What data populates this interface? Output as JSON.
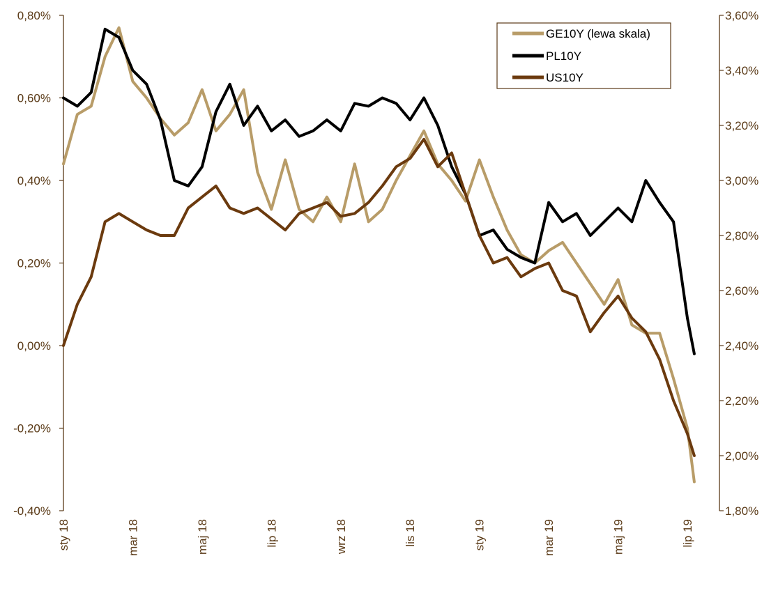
{
  "chart_data": {
    "type": "line",
    "title": "",
    "xlabel": "",
    "ylabel_left": "",
    "ylabel_right": "",
    "x_ticks": [
      "sty 18",
      "mar 18",
      "maj 18",
      "lip 18",
      "wrz 18",
      "lis 18",
      "sty 19",
      "mar 19",
      "maj 19",
      "lip 19"
    ],
    "y_left_ticks": [
      "0,80%",
      "0,60%",
      "0,40%",
      "0,20%",
      "0,00%",
      "-0,20%",
      "-0,40%"
    ],
    "y_right_ticks": [
      "3,60%",
      "3,40%",
      "3,20%",
      "3,00%",
      "2,80%",
      "2,60%",
      "2,40%",
      "2,20%",
      "2,00%",
      "1,80%"
    ],
    "y_left_range": [
      -0.4,
      0.8
    ],
    "y_right_range": [
      1.8,
      3.6
    ],
    "legend_position": "top-right",
    "series": [
      {
        "name": "GE10Y (lewa skala)",
        "axis": "left",
        "color": "#b89c68",
        "x": [
          0,
          0.2,
          0.4,
          0.6,
          0.8,
          1,
          1.2,
          1.4,
          1.6,
          1.8,
          2,
          2.2,
          2.4,
          2.6,
          2.8,
          3,
          3.2,
          3.4,
          3.6,
          3.8,
          4,
          4.2,
          4.4,
          4.6,
          4.8,
          5,
          5.2,
          5.4,
          5.6,
          5.8,
          6,
          6.2,
          6.4,
          6.6,
          6.8,
          7,
          7.2,
          7.4,
          7.6,
          7.8,
          8,
          8.2,
          8.4,
          8.6,
          8.8,
          9,
          9.1
        ],
        "values": [
          0.44,
          0.56,
          0.58,
          0.7,
          0.77,
          0.64,
          0.6,
          0.55,
          0.51,
          0.54,
          0.62,
          0.52,
          0.56,
          0.62,
          0.42,
          0.33,
          0.45,
          0.33,
          0.3,
          0.36,
          0.3,
          0.44,
          0.3,
          0.33,
          0.4,
          0.46,
          0.52,
          0.44,
          0.4,
          0.35,
          0.45,
          0.36,
          0.28,
          0.22,
          0.2,
          0.23,
          0.25,
          0.2,
          0.15,
          0.1,
          0.16,
          0.05,
          0.03,
          0.03,
          -0.08,
          -0.2,
          -0.33
        ]
      },
      {
        "name": "PL10Y",
        "axis": "right",
        "color": "#000000",
        "x": [
          0,
          0.2,
          0.4,
          0.6,
          0.8,
          1,
          1.2,
          1.4,
          1.6,
          1.8,
          2,
          2.2,
          2.4,
          2.6,
          2.8,
          3,
          3.2,
          3.4,
          3.6,
          3.8,
          4,
          4.2,
          4.4,
          4.6,
          4.8,
          5,
          5.2,
          5.4,
          5.6,
          5.8,
          6,
          6.2,
          6.4,
          6.6,
          6.8,
          7,
          7.2,
          7.4,
          7.6,
          7.8,
          8,
          8.2,
          8.4,
          8.6,
          8.8,
          9,
          9.1
        ],
        "values": [
          3.3,
          3.27,
          3.32,
          3.55,
          3.52,
          3.4,
          3.35,
          3.22,
          3.0,
          2.98,
          3.05,
          3.25,
          3.35,
          3.2,
          3.27,
          3.18,
          3.22,
          3.16,
          3.18,
          3.22,
          3.18,
          3.28,
          3.27,
          3.3,
          3.28,
          3.22,
          3.3,
          3.2,
          3.05,
          2.95,
          2.8,
          2.82,
          2.75,
          2.72,
          2.7,
          2.92,
          2.85,
          2.88,
          2.8,
          2.85,
          2.9,
          2.85,
          3.0,
          2.92,
          2.85,
          2.5,
          2.37
        ]
      },
      {
        "name": "US10Y",
        "axis": "right",
        "color": "#6b3a0e",
        "x": [
          0,
          0.2,
          0.4,
          0.6,
          0.8,
          1,
          1.2,
          1.4,
          1.6,
          1.8,
          2,
          2.2,
          2.4,
          2.6,
          2.8,
          3,
          3.2,
          3.4,
          3.6,
          3.8,
          4,
          4.2,
          4.4,
          4.6,
          4.8,
          5,
          5.2,
          5.4,
          5.6,
          5.8,
          6,
          6.2,
          6.4,
          6.6,
          6.8,
          7,
          7.2,
          7.4,
          7.6,
          7.8,
          8,
          8.2,
          8.4,
          8.6,
          8.8,
          9,
          9.1
        ],
        "values": [
          2.4,
          2.55,
          2.65,
          2.85,
          2.88,
          2.85,
          2.82,
          2.8,
          2.8,
          2.9,
          2.94,
          2.98,
          2.9,
          2.88,
          2.9,
          2.86,
          2.82,
          2.88,
          2.9,
          2.92,
          2.87,
          2.88,
          2.92,
          2.98,
          3.05,
          3.08,
          3.15,
          3.05,
          3.1,
          2.95,
          2.8,
          2.7,
          2.72,
          2.65,
          2.68,
          2.7,
          2.6,
          2.58,
          2.45,
          2.52,
          2.58,
          2.5,
          2.45,
          2.35,
          2.2,
          2.08,
          2.0
        ]
      }
    ]
  }
}
